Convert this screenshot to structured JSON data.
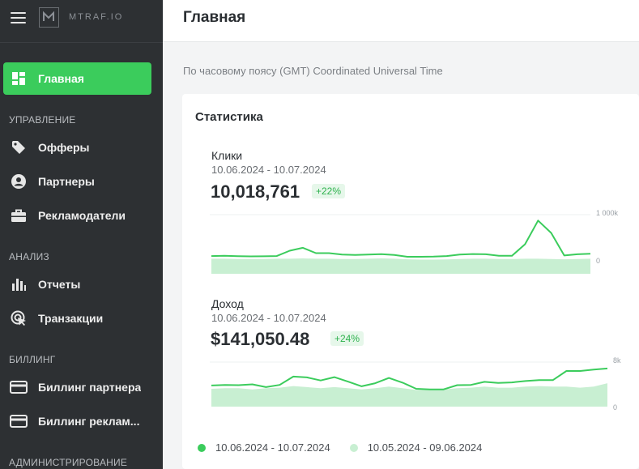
{
  "brand": {
    "name": "MTRAF.IO"
  },
  "sidebar": {
    "items": [
      {
        "label": "Главная",
        "icon": "dashboard-icon",
        "active": true
      },
      {
        "section": "УПРАВЛЕНИЕ"
      },
      {
        "label": "Офферы",
        "icon": "tag-icon"
      },
      {
        "label": "Партнеры",
        "icon": "user-circle-icon"
      },
      {
        "label": "Рекламодатели",
        "icon": "briefcase-icon"
      },
      {
        "section": "АНАЛИЗ"
      },
      {
        "label": "Отчеты",
        "icon": "bar-chart-icon"
      },
      {
        "label": "Транзакции",
        "icon": "cursor-click-icon"
      },
      {
        "section": "БИЛЛИНГ"
      },
      {
        "label": "Биллинг партнера",
        "icon": "credit-card-icon"
      },
      {
        "label": "Биллинг реклам...",
        "icon": "credit-card-icon"
      },
      {
        "section": "АДМИНИСТРИРОВАНИЕ"
      }
    ]
  },
  "header": {
    "title": "Главная"
  },
  "timezone_note": "По часовому поясу (GMT) Coordinated Universal Time",
  "stats": {
    "title": "Статистика",
    "clicks": {
      "name": "Клики",
      "range": "10.06.2024 - 10.07.2024",
      "value": "10,018,761",
      "change": "+22%",
      "axis_max": "1 000k",
      "axis_min": "0"
    },
    "revenue": {
      "name": "Доход",
      "range": "10.06.2024 - 10.07.2024",
      "value": "$141,050.48",
      "change": "+24%",
      "axis_max": "8k",
      "axis_min": "0"
    },
    "legend": {
      "current": "10.06.2024 - 10.07.2024",
      "previous": "10.05.2024 - 09.06.2024"
    }
  },
  "colors": {
    "accent": "#3bcc5c",
    "current_series": "#3bcc5c",
    "previous_series": "#c8efd2"
  },
  "chart_data": [
    {
      "type": "line",
      "title": "Клики",
      "ylim": [
        0,
        1000
      ],
      "series": [
        {
          "name": "10.06.2024 - 10.07.2024",
          "values": [
            300,
            305,
            298,
            294,
            296,
            300,
            390,
            440,
            350,
            350,
            325,
            318,
            325,
            332,
            318,
            288,
            288,
            290,
            300,
            325,
            334,
            330,
            305,
            305,
            500,
            900,
            690,
            310,
            330,
            340
          ]
        },
        {
          "name": "10.05.2024 - 09.06.2024",
          "values": [
            255,
            255,
            250,
            250,
            250,
            255,
            255,
            260,
            255,
            255,
            250,
            250,
            255,
            260,
            255,
            245,
            240,
            240,
            242,
            250,
            255,
            255,
            250,
            250,
            255,
            255,
            250,
            245,
            250,
            255
          ]
        }
      ]
    },
    {
      "type": "line",
      "title": "Доход",
      "ylim": [
        0,
        8
      ],
      "series": [
        {
          "name": "10.06.2024 - 10.07.2024",
          "values": [
            3.8,
            3.9,
            3.85,
            4.0,
            3.5,
            3.9,
            5.4,
            5.25,
            4.7,
            5.3,
            4.5,
            3.65,
            4.2,
            5.15,
            4.3,
            3.2,
            3.1,
            3.1,
            3.85,
            3.9,
            4.45,
            4.25,
            4.35,
            4.6,
            4.75,
            4.75,
            6.4,
            6.4,
            6.65,
            6.85
          ]
        },
        {
          "name": "10.05.2024 - 09.06.2024",
          "values": [
            3.2,
            3.3,
            3.3,
            3.1,
            3.3,
            3.4,
            3.7,
            3.5,
            3.3,
            3.5,
            3.3,
            3.1,
            3.3,
            3.6,
            3.3,
            3.0,
            3.0,
            3.1,
            3.3,
            3.4,
            3.6,
            3.4,
            3.4,
            3.6,
            3.7,
            3.6,
            3.6,
            3.4,
            3.6,
            4.2
          ]
        }
      ]
    }
  ]
}
